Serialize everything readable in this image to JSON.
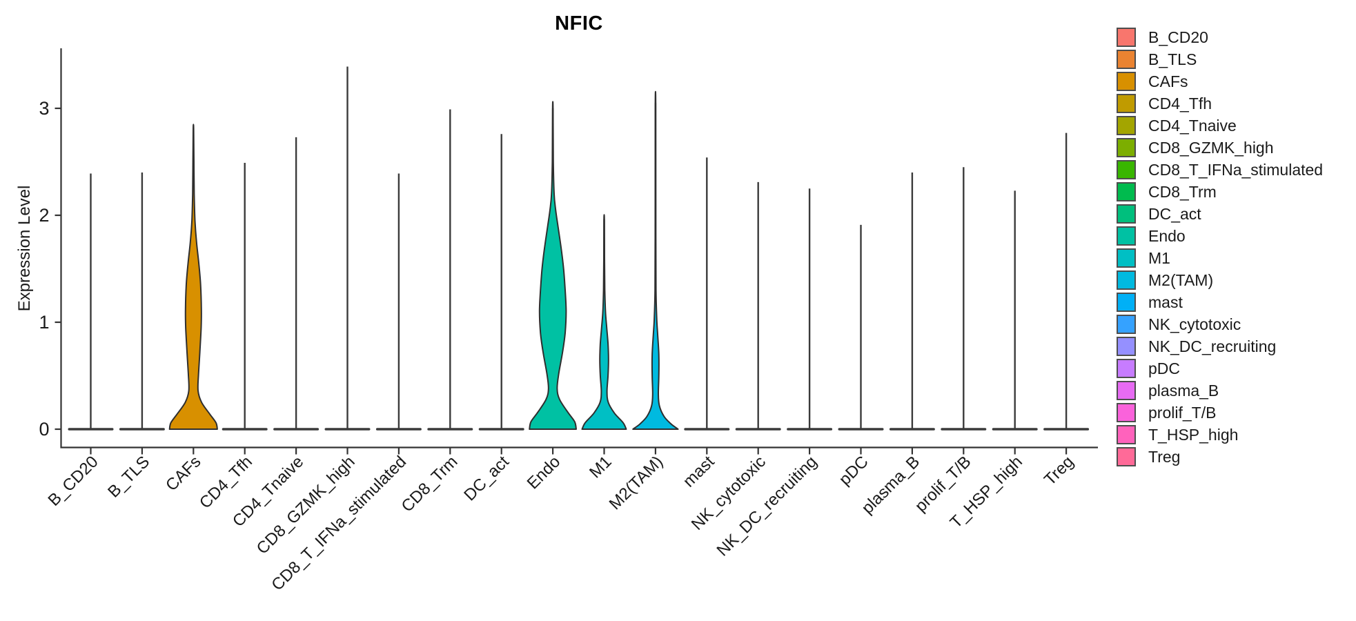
{
  "title": "NFIC",
  "ylabel": "Expression Level",
  "legend": {
    "position": "right",
    "swatch_border_color": "#4d4d4d"
  },
  "chart_data": {
    "type": "violin",
    "title": "NFIC",
    "xlabel": "",
    "ylabel": "Expression Level",
    "yticks": [
      0,
      1,
      2,
      3
    ],
    "ylim": [
      -0.17,
      3.56
    ],
    "grid": false,
    "legend_position": "right",
    "categories": [
      "B_CD20",
      "B_TLS",
      "CAFs",
      "CD4_Tfh",
      "CD4_Tnaive",
      "CD8_GZMK_high",
      "CD8_T_IFNa_stimulated",
      "CD8_Trm",
      "DC_act",
      "Endo",
      "M1",
      "M2(TAM)",
      "mast",
      "NK_cytotoxic",
      "NK_DC_recruiting",
      "pDC",
      "plasma_B",
      "prolif_T/B",
      "T_HSP_high",
      "Treg"
    ],
    "note": "Expression is concentrated at 0 for all populations (flat bar at y=0 with a thin spike to the max expressing cell). CAFs, Endo, M1 and M2(TAM) show visible density above 0 (profile = [expression_level, normalized half-width]).",
    "series": [
      {
        "name": "B_CD20",
        "color": "#F8766D",
        "max": 2.39
      },
      {
        "name": "B_TLS",
        "color": "#EA8331",
        "max": 2.4
      },
      {
        "name": "CAFs",
        "color": "#D89000",
        "max": 2.81,
        "profile": [
          [
            0,
            0.93
          ],
          [
            0.06,
            0.88
          ],
          [
            0.14,
            0.64
          ],
          [
            0.25,
            0.32
          ],
          [
            0.36,
            0.18
          ],
          [
            0.52,
            0.2
          ],
          [
            0.72,
            0.25
          ],
          [
            0.95,
            0.3
          ],
          [
            1.12,
            0.31
          ],
          [
            1.35,
            0.28
          ],
          [
            1.55,
            0.21
          ],
          [
            1.75,
            0.12
          ],
          [
            1.95,
            0.06
          ],
          [
            2.2,
            0.03
          ],
          [
            2.5,
            0.018
          ],
          [
            2.81,
            0.009
          ]
        ]
      },
      {
        "name": "CD4_Tfh",
        "color": "#C09B00",
        "max": 2.49
      },
      {
        "name": "CD4_Tnaive",
        "color": "#A3A500",
        "max": 2.73
      },
      {
        "name": "CD8_GZMK_high",
        "color": "#7CAE00",
        "max": 3.39
      },
      {
        "name": "CD8_T_IFNa_stimulated",
        "color": "#39B600",
        "max": 2.39
      },
      {
        "name": "CD8_Trm",
        "color": "#00BB4E",
        "max": 2.99
      },
      {
        "name": "DC_act",
        "color": "#00BF7D",
        "max": 2.76
      },
      {
        "name": "Endo",
        "color": "#00C1A3",
        "max": 3.0,
        "profile": [
          [
            0,
            0.91
          ],
          [
            0.07,
            0.85
          ],
          [
            0.16,
            0.58
          ],
          [
            0.28,
            0.26
          ],
          [
            0.38,
            0.17
          ],
          [
            0.52,
            0.23
          ],
          [
            0.72,
            0.38
          ],
          [
            0.9,
            0.48
          ],
          [
            1.1,
            0.52
          ],
          [
            1.3,
            0.48
          ],
          [
            1.5,
            0.42
          ],
          [
            1.7,
            0.32
          ],
          [
            1.9,
            0.2
          ],
          [
            2.05,
            0.11
          ],
          [
            2.2,
            0.05
          ],
          [
            2.5,
            0.02
          ],
          [
            3.0,
            0.009
          ]
        ]
      },
      {
        "name": "M1",
        "color": "#00BFC4",
        "max": 1.96,
        "profile": [
          [
            0,
            0.86
          ],
          [
            0.06,
            0.74
          ],
          [
            0.15,
            0.4
          ],
          [
            0.25,
            0.16
          ],
          [
            0.35,
            0.11
          ],
          [
            0.5,
            0.15
          ],
          [
            0.65,
            0.17
          ],
          [
            0.8,
            0.15
          ],
          [
            0.95,
            0.1
          ],
          [
            1.1,
            0.05
          ],
          [
            1.3,
            0.025
          ],
          [
            1.6,
            0.014
          ],
          [
            1.96,
            0.008
          ]
        ]
      },
      {
        "name": "M2(TAM)",
        "color": "#00BAE0",
        "max": 3.05,
        "profile": [
          [
            0,
            0.88
          ],
          [
            0.05,
            0.6
          ],
          [
            0.12,
            0.33
          ],
          [
            0.22,
            0.15
          ],
          [
            0.33,
            0.11
          ],
          [
            0.5,
            0.13
          ],
          [
            0.7,
            0.13
          ],
          [
            0.9,
            0.08
          ],
          [
            1.05,
            0.045
          ],
          [
            1.3,
            0.02
          ],
          [
            1.7,
            0.013
          ],
          [
            2.2,
            0.01
          ],
          [
            3.05,
            0.008
          ]
        ]
      },
      {
        "name": "mast",
        "color": "#00B0F6",
        "max": 2.54
      },
      {
        "name": "NK_cytotoxic",
        "color": "#35A2FF",
        "max": 2.31
      },
      {
        "name": "NK_DC_recruiting",
        "color": "#9590FF",
        "max": 2.25
      },
      {
        "name": "pDC",
        "color": "#C77CFF",
        "max": 1.91
      },
      {
        "name": "plasma_B",
        "color": "#E76BF3",
        "max": 2.4
      },
      {
        "name": "prolif_T/B",
        "color": "#FA62DB",
        "max": 2.45
      },
      {
        "name": "T_HSP_high",
        "color": "#FF62BC",
        "max": 2.23
      },
      {
        "name": "Treg",
        "color": "#FF6A98",
        "max": 2.77
      }
    ]
  }
}
